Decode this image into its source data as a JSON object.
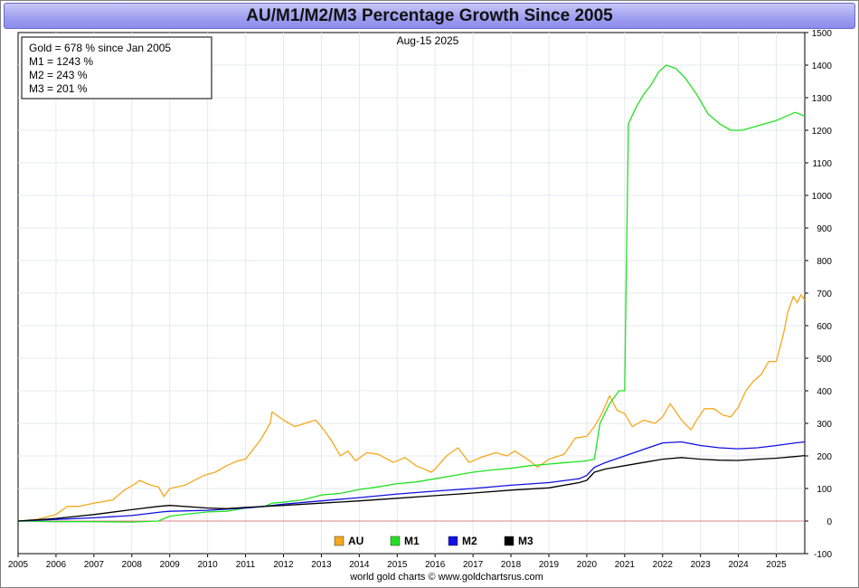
{
  "chart_data": {
    "type": "line",
    "title": "AU/M1/M2/M3 Percentage Growth Since 2005",
    "date_label": "Aug-15  2025",
    "footer": "world gold charts © www.goldchartsrus.com",
    "info_box": [
      "Gold = 678 % since Jan 2005",
      "M1 = 1243 %",
      "M2 = 243 %",
      "M3 = 201 %"
    ],
    "x_ticks": [
      "2005",
      "2006",
      "2007",
      "2008",
      "2009",
      "2010",
      "2011",
      "2012",
      "2013",
      "2014",
      "2015",
      "2016",
      "2017",
      "2018",
      "2019",
      "2020",
      "2021",
      "2022",
      "2023",
      "2024",
      "2025"
    ],
    "x_range": [
      2005,
      2025.75
    ],
    "y_ticks": [
      -100,
      0,
      100,
      200,
      300,
      400,
      500,
      600,
      700,
      800,
      900,
      1000,
      1100,
      1200,
      1300,
      1400,
      1500
    ],
    "ylim": [
      -100,
      1500
    ],
    "grid": true,
    "legend_position": "bottom-center",
    "series": [
      {
        "name": "AU",
        "color": "#f5a81c",
        "points": [
          [
            2005.0,
            0
          ],
          [
            2005.5,
            5
          ],
          [
            2006.0,
            20
          ],
          [
            2006.3,
            45
          ],
          [
            2006.6,
            45
          ],
          [
            2007.0,
            55
          ],
          [
            2007.5,
            65
          ],
          [
            2007.8,
            95
          ],
          [
            2008.1,
            115
          ],
          [
            2008.2,
            125
          ],
          [
            2008.5,
            110
          ],
          [
            2008.7,
            105
          ],
          [
            2008.85,
            75
          ],
          [
            2009.0,
            100
          ],
          [
            2009.4,
            110
          ],
          [
            2009.9,
            140
          ],
          [
            2010.2,
            150
          ],
          [
            2010.5,
            170
          ],
          [
            2010.8,
            185
          ],
          [
            2011.0,
            190
          ],
          [
            2011.4,
            250
          ],
          [
            2011.65,
            300
          ],
          [
            2011.7,
            335
          ],
          [
            2012.0,
            310
          ],
          [
            2012.3,
            290
          ],
          [
            2012.7,
            305
          ],
          [
            2012.85,
            310
          ],
          [
            2013.0,
            290
          ],
          [
            2013.25,
            250
          ],
          [
            2013.5,
            200
          ],
          [
            2013.7,
            215
          ],
          [
            2013.9,
            185
          ],
          [
            2014.2,
            210
          ],
          [
            2014.5,
            205
          ],
          [
            2014.9,
            180
          ],
          [
            2015.2,
            195
          ],
          [
            2015.5,
            170
          ],
          [
            2015.9,
            150
          ],
          [
            2016.0,
            160
          ],
          [
            2016.3,
            200
          ],
          [
            2016.6,
            225
          ],
          [
            2016.9,
            180
          ],
          [
            2017.2,
            195
          ],
          [
            2017.6,
            210
          ],
          [
            2017.9,
            200
          ],
          [
            2018.1,
            215
          ],
          [
            2018.5,
            185
          ],
          [
            2018.7,
            165
          ],
          [
            2019.0,
            190
          ],
          [
            2019.4,
            205
          ],
          [
            2019.7,
            255
          ],
          [
            2020.0,
            260
          ],
          [
            2020.2,
            290
          ],
          [
            2020.4,
            330
          ],
          [
            2020.6,
            385
          ],
          [
            2020.8,
            340
          ],
          [
            2021.0,
            330
          ],
          [
            2021.2,
            290
          ],
          [
            2021.5,
            310
          ],
          [
            2021.8,
            300
          ],
          [
            2022.0,
            320
          ],
          [
            2022.2,
            360
          ],
          [
            2022.5,
            310
          ],
          [
            2022.75,
            280
          ],
          [
            2022.9,
            310
          ],
          [
            2023.1,
            345
          ],
          [
            2023.35,
            345
          ],
          [
            2023.6,
            325
          ],
          [
            2023.8,
            320
          ],
          [
            2024.0,
            350
          ],
          [
            2024.2,
            400
          ],
          [
            2024.4,
            430
          ],
          [
            2024.6,
            450
          ],
          [
            2024.8,
            490
          ],
          [
            2025.0,
            490
          ],
          [
            2025.2,
            580
          ],
          [
            2025.3,
            640
          ],
          [
            2025.45,
            690
          ],
          [
            2025.55,
            670
          ],
          [
            2025.65,
            695
          ],
          [
            2025.75,
            678
          ]
        ]
      },
      {
        "name": "M1",
        "color": "#22e022",
        "points": [
          [
            2005.0,
            0
          ],
          [
            2006.0,
            -2
          ],
          [
            2007.0,
            -2
          ],
          [
            2008.0,
            -3
          ],
          [
            2008.7,
            0
          ],
          [
            2009.0,
            15
          ],
          [
            2009.5,
            22
          ],
          [
            2010.0,
            28
          ],
          [
            2010.5,
            30
          ],
          [
            2011.0,
            40
          ],
          [
            2011.5,
            45
          ],
          [
            2011.7,
            55
          ],
          [
            2012.0,
            58
          ],
          [
            2012.5,
            65
          ],
          [
            2013.0,
            80
          ],
          [
            2013.5,
            85
          ],
          [
            2014.0,
            97
          ],
          [
            2014.5,
            105
          ],
          [
            2015.0,
            115
          ],
          [
            2015.5,
            120
          ],
          [
            2016.0,
            130
          ],
          [
            2016.5,
            140
          ],
          [
            2017.0,
            150
          ],
          [
            2017.5,
            157
          ],
          [
            2018.0,
            162
          ],
          [
            2018.5,
            170
          ],
          [
            2019.0,
            175
          ],
          [
            2019.5,
            180
          ],
          [
            2020.0,
            185
          ],
          [
            2020.2,
            190
          ],
          [
            2020.35,
            300
          ],
          [
            2020.6,
            360
          ],
          [
            2020.85,
            400
          ],
          [
            2021.0,
            400
          ],
          [
            2021.1,
            1220
          ],
          [
            2021.3,
            1270
          ],
          [
            2021.5,
            1310
          ],
          [
            2021.7,
            1340
          ],
          [
            2021.9,
            1380
          ],
          [
            2022.1,
            1400
          ],
          [
            2022.35,
            1390
          ],
          [
            2022.6,
            1360
          ],
          [
            2022.9,
            1310
          ],
          [
            2023.2,
            1250
          ],
          [
            2023.5,
            1220
          ],
          [
            2023.8,
            1200
          ],
          [
            2024.1,
            1200
          ],
          [
            2024.4,
            1210
          ],
          [
            2024.7,
            1220
          ],
          [
            2025.0,
            1230
          ],
          [
            2025.3,
            1245
          ],
          [
            2025.5,
            1255
          ],
          [
            2025.75,
            1243
          ]
        ]
      },
      {
        "name": "M2",
        "color": "#1010e0",
        "points": [
          [
            2005.0,
            0
          ],
          [
            2006.0,
            5
          ],
          [
            2007.0,
            10
          ],
          [
            2008.0,
            17
          ],
          [
            2008.8,
            28
          ],
          [
            2009.0,
            30
          ],
          [
            2010.0,
            33
          ],
          [
            2011.0,
            40
          ],
          [
            2011.5,
            45
          ],
          [
            2012.0,
            52
          ],
          [
            2013.0,
            62
          ],
          [
            2014.0,
            72
          ],
          [
            2015.0,
            83
          ],
          [
            2016.0,
            92
          ],
          [
            2017.0,
            100
          ],
          [
            2018.0,
            110
          ],
          [
            2019.0,
            118
          ],
          [
            2019.8,
            130
          ],
          [
            2020.0,
            140
          ],
          [
            2020.2,
            165
          ],
          [
            2020.5,
            180
          ],
          [
            2021.0,
            200
          ],
          [
            2021.5,
            220
          ],
          [
            2022.0,
            240
          ],
          [
            2022.5,
            243
          ],
          [
            2023.0,
            232
          ],
          [
            2023.5,
            225
          ],
          [
            2024.0,
            222
          ],
          [
            2024.5,
            225
          ],
          [
            2025.0,
            232
          ],
          [
            2025.5,
            240
          ],
          [
            2025.75,
            243
          ]
        ]
      },
      {
        "name": "M3",
        "color": "#000000",
        "points": [
          [
            2005.0,
            0
          ],
          [
            2006.0,
            8
          ],
          [
            2007.0,
            20
          ],
          [
            2008.0,
            35
          ],
          [
            2008.7,
            45
          ],
          [
            2009.0,
            48
          ],
          [
            2010.0,
            40
          ],
          [
            2010.5,
            38
          ],
          [
            2011.0,
            42
          ],
          [
            2012.0,
            48
          ],
          [
            2013.0,
            55
          ],
          [
            2014.0,
            62
          ],
          [
            2015.0,
            70
          ],
          [
            2016.0,
            78
          ],
          [
            2017.0,
            86
          ],
          [
            2018.0,
            95
          ],
          [
            2019.0,
            102
          ],
          [
            2019.8,
            118
          ],
          [
            2020.0,
            125
          ],
          [
            2020.2,
            150
          ],
          [
            2020.5,
            160
          ],
          [
            2021.0,
            170
          ],
          [
            2021.5,
            180
          ],
          [
            2022.0,
            190
          ],
          [
            2022.5,
            195
          ],
          [
            2023.0,
            190
          ],
          [
            2023.5,
            187
          ],
          [
            2024.0,
            186
          ],
          [
            2024.5,
            190
          ],
          [
            2025.0,
            193
          ],
          [
            2025.5,
            198
          ],
          [
            2025.75,
            201
          ]
        ]
      }
    ]
  }
}
